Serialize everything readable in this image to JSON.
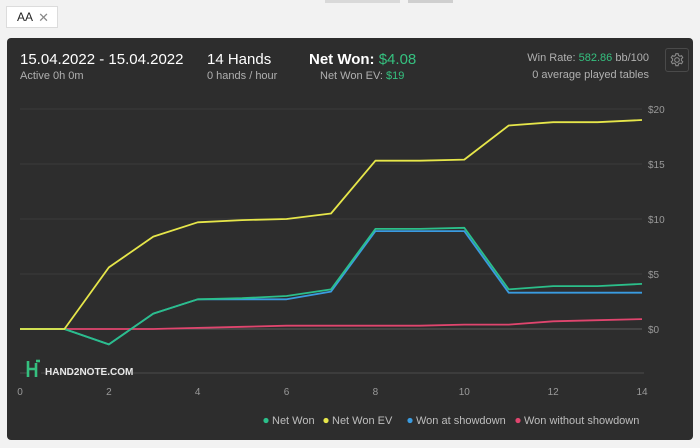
{
  "tab": {
    "label": "AA",
    "close": "✕"
  },
  "header": {
    "date_range": "15.04.2022 - 15.04.2022",
    "active": "Active 0h 0m",
    "hands": "14 Hands",
    "hands_per_hour": "0 hands / hour",
    "net_won_label": "Net Won:",
    "net_won_value": "$4.08",
    "net_won_ev_label": "Net Won  EV:",
    "net_won_ev_value": "$19",
    "win_rate_label": "Win Rate:",
    "win_rate_value": "582.86",
    "win_rate_unit": "bb/100",
    "avg_tables": "0 average played tables"
  },
  "icons": {
    "settings": "gear-icon",
    "logo": "hand2note-logo"
  },
  "watermark": "HAND2NOTE.COM",
  "colors": {
    "net_won": "#2bbf8a",
    "net_won_ev": "#e6e64a",
    "won_at_showdown": "#3a9be0",
    "won_without_showdown": "#e0456e",
    "panel": "#2d2d2d",
    "positive": "#35c07f"
  },
  "chart_data": {
    "type": "line",
    "xlim": [
      0,
      14
    ],
    "ylim": [
      -4,
      21
    ],
    "x_ticks": [
      "0",
      "2",
      "4",
      "6",
      "8",
      "10",
      "12",
      "14"
    ],
    "y_ticks": [
      "$20",
      "$15",
      "$10",
      "$5",
      "$0"
    ],
    "y_tick_values": [
      20,
      15,
      10,
      5,
      0
    ],
    "x_tick_values": [
      0,
      2,
      4,
      6,
      8,
      10,
      12,
      14
    ],
    "grid": true,
    "legend_position": "bottom-right",
    "x": [
      0,
      1,
      2,
      3,
      4,
      5,
      6,
      7,
      8,
      9,
      10,
      11,
      12,
      13,
      14
    ],
    "series": [
      {
        "name": "Net Won",
        "key": "net_won",
        "values": [
          0,
          0,
          -1.4,
          1.4,
          2.7,
          2.8,
          3.0,
          3.6,
          9.1,
          9.1,
          9.2,
          3.6,
          3.9,
          3.9,
          4.1
        ]
      },
      {
        "name": "Net Won  EV",
        "key": "net_won_ev",
        "values": [
          0,
          0,
          5.6,
          8.4,
          9.7,
          9.9,
          10.0,
          10.5,
          15.3,
          15.3,
          15.4,
          18.5,
          18.8,
          18.8,
          19.0
        ]
      },
      {
        "name": "Won at showdown",
        "key": "won_at_showdown",
        "values": [
          0,
          0,
          -1.4,
          1.4,
          2.7,
          2.7,
          2.7,
          3.4,
          8.9,
          8.9,
          8.9,
          3.3,
          3.3,
          3.3,
          3.3
        ]
      },
      {
        "name": "Won without showdown",
        "key": "won_without_showdown",
        "values": [
          0,
          0,
          0,
          0,
          0.1,
          0.2,
          0.3,
          0.3,
          0.3,
          0.3,
          0.4,
          0.4,
          0.7,
          0.8,
          0.9
        ]
      }
    ]
  }
}
